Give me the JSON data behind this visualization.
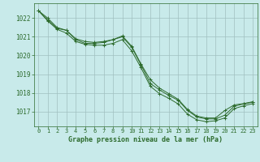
{
  "title": "Graphe pression niveau de la mer (hPa)",
  "bg_color": "#c8eaea",
  "grid_color": "#a0c0c0",
  "line_color": "#2d6b2d",
  "ylim": [
    1016.2,
    1022.8
  ],
  "yticks": [
    1017,
    1018,
    1019,
    1020,
    1021,
    1022
  ],
  "xlim": [
    -0.5,
    23.5
  ],
  "xticks": [
    0,
    1,
    2,
    3,
    4,
    5,
    6,
    7,
    8,
    9,
    10,
    11,
    12,
    13,
    14,
    15,
    16,
    17,
    18,
    19,
    20,
    21,
    22,
    23
  ],
  "series1": [
    1022.4,
    1021.9,
    1021.45,
    1021.35,
    1020.85,
    1020.65,
    1020.65,
    1020.7,
    1020.85,
    1021.05,
    1020.5,
    1019.55,
    1018.7,
    1018.25,
    1017.95,
    1017.65,
    1017.1,
    1016.75,
    1016.65,
    1016.65,
    1017.05,
    1017.35,
    1017.42,
    1017.52
  ],
  "series2": [
    1022.4,
    1021.85,
    1021.4,
    1021.2,
    1020.75,
    1020.6,
    1020.55,
    1020.55,
    1020.65,
    1020.85,
    1020.25,
    1019.35,
    1018.35,
    1017.95,
    1017.7,
    1017.4,
    1016.85,
    1016.55,
    1016.45,
    1016.5,
    1016.65,
    1017.15,
    1017.3,
    1017.42
  ],
  "series3": [
    1022.4,
    1022.0,
    1021.5,
    1021.35,
    1020.9,
    1020.75,
    1020.7,
    1020.75,
    1020.85,
    1021.0,
    1020.45,
    1019.5,
    1018.5,
    1018.15,
    1017.85,
    1017.6,
    1017.05,
    1016.7,
    1016.6,
    1016.6,
    1016.8,
    1017.28,
    1017.4,
    1017.5
  ]
}
